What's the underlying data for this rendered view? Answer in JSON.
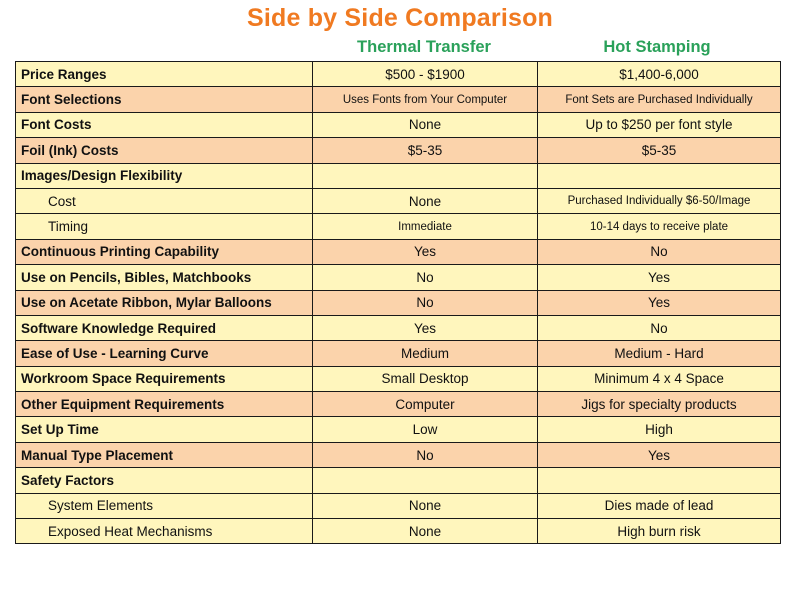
{
  "title": "Side by Side Comparison",
  "columns": {
    "thermal": "Thermal Transfer",
    "hot": "Hot Stamping"
  },
  "colors": {
    "title": "#f07a21",
    "column_heading": "#2aa15a",
    "row_yellow": "#fff6bd",
    "row_orange": "#fbd3ab"
  },
  "rows": [
    {
      "label": "Price Ranges",
      "thermal": "$500 - $1900",
      "hot": "$1,400-6,000"
    },
    {
      "label": "Font Selections",
      "thermal": "Uses Fonts from Your Computer",
      "hot": "Font Sets are Purchased Individually"
    },
    {
      "label": "Font Costs",
      "thermal": "None",
      "hot": "Up to $250 per font style"
    },
    {
      "label": "Foil (Ink) Costs",
      "thermal": "$5-35",
      "hot": "$5-35"
    },
    {
      "label": "Images/Design Flexibility",
      "thermal": "",
      "hot": ""
    },
    {
      "label": "Cost",
      "thermal": "None",
      "hot": "Purchased Individually $6-50/Image"
    },
    {
      "label": "Timing",
      "thermal": "Immediate",
      "hot": "10-14 days to receive plate"
    },
    {
      "label": "Continuous Printing Capability",
      "thermal": "Yes",
      "hot": "No"
    },
    {
      "label": "Use on Pencils, Bibles, Matchbooks",
      "thermal": "No",
      "hot": "Yes"
    },
    {
      "label": "Use on Acetate Ribbon, Mylar Balloons",
      "thermal": "No",
      "hot": "Yes"
    },
    {
      "label": "Software Knowledge Required",
      "thermal": "Yes",
      "hot": "No"
    },
    {
      "label": "Ease of Use - Learning Curve",
      "thermal": "Medium",
      "hot": "Medium - Hard"
    },
    {
      "label": "Workroom Space Requirements",
      "thermal": "Small Desktop",
      "hot": "Minimum 4 x 4 Space"
    },
    {
      "label": "Other Equipment Requirements",
      "thermal": "Computer",
      "hot": "Jigs for specialty products"
    },
    {
      "label": "Set Up Time",
      "thermal": "Low",
      "hot": "High"
    },
    {
      "label": "Manual Type Placement",
      "thermal": "No",
      "hot": "Yes"
    },
    {
      "label": "Safety Factors",
      "thermal": "",
      "hot": ""
    },
    {
      "label": "System Elements",
      "thermal": "None",
      "hot": "Dies made of lead"
    },
    {
      "label": "Exposed Heat Mechanisms",
      "thermal": "None",
      "hot": "High burn risk"
    }
  ]
}
